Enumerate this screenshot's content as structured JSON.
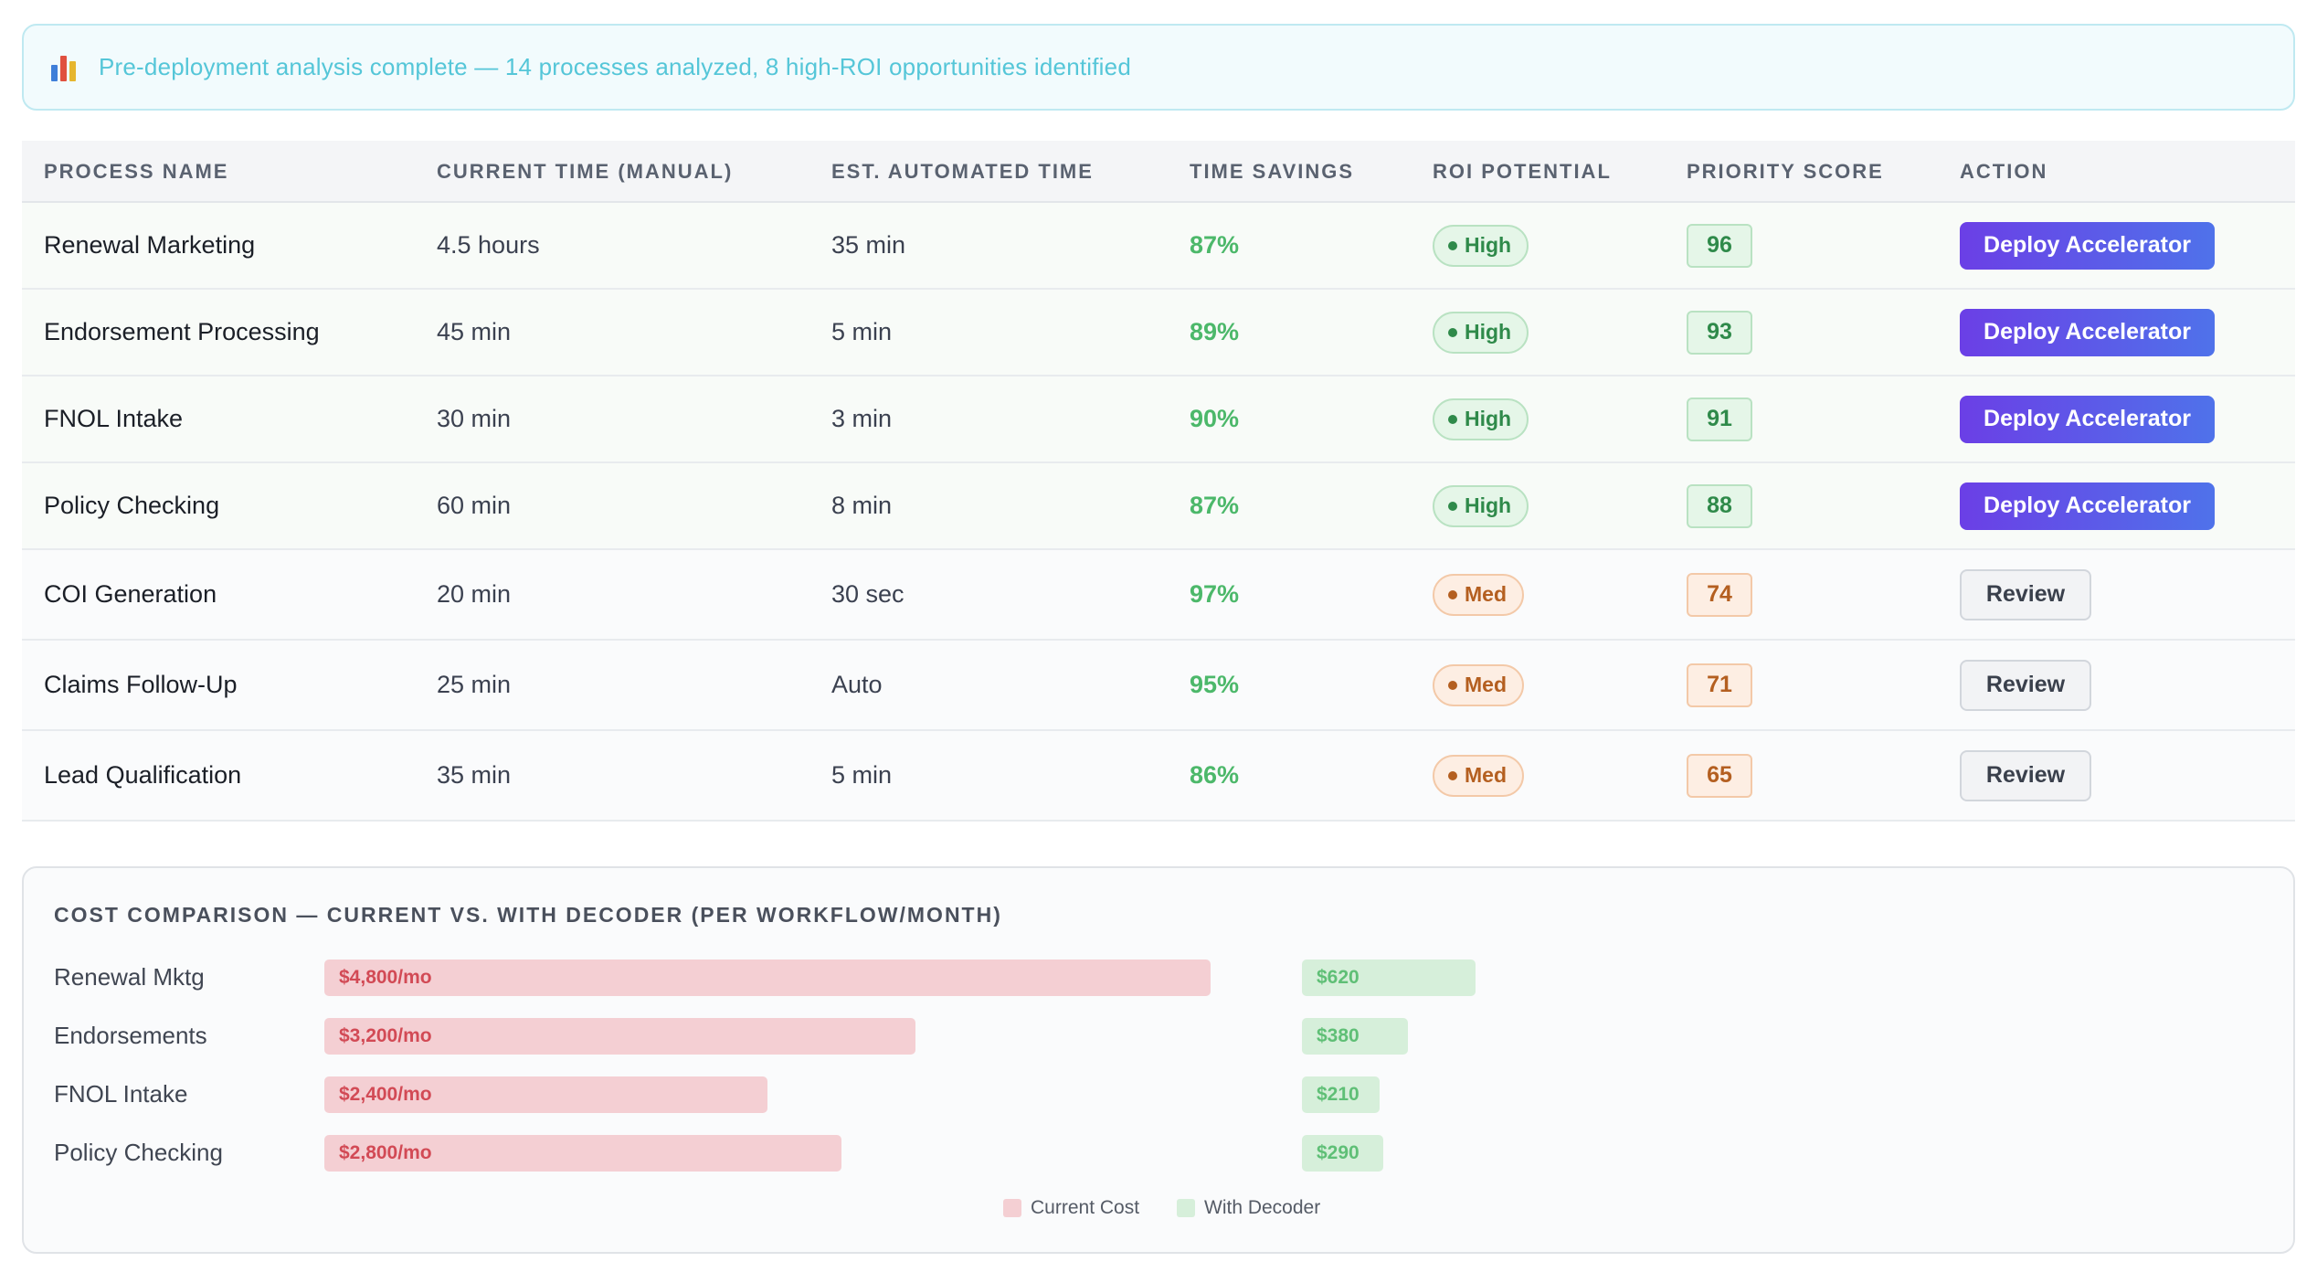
{
  "banner": {
    "icon": "bar-chart-icon",
    "message": "Pre-deployment analysis complete — 14 processes analyzed, 8 high-ROI opportunities identified"
  },
  "table": {
    "headers": [
      "PROCESS NAME",
      "CURRENT TIME (MANUAL)",
      "EST. AUTOMATED TIME",
      "TIME SAVINGS",
      "ROI POTENTIAL",
      "PRIORITY SCORE",
      "ACTION"
    ],
    "rows": [
      {
        "name": "Renewal Marketing",
        "current": "4.5 hours",
        "automated": "35 min",
        "savings": "87%",
        "roi": "High",
        "score": "96",
        "action": "Deploy Accelerator"
      },
      {
        "name": "Endorsement Processing",
        "current": "45 min",
        "automated": "5 min",
        "savings": "89%",
        "roi": "High",
        "score": "93",
        "action": "Deploy Accelerator"
      },
      {
        "name": "FNOL Intake",
        "current": "30 min",
        "automated": "3 min",
        "savings": "90%",
        "roi": "High",
        "score": "91",
        "action": "Deploy Accelerator"
      },
      {
        "name": "Policy Checking",
        "current": "60 min",
        "automated": "8 min",
        "savings": "87%",
        "roi": "High",
        "score": "88",
        "action": "Deploy Accelerator"
      },
      {
        "name": "COI Generation",
        "current": "20 min",
        "automated": "30 sec",
        "savings": "97%",
        "roi": "Med",
        "score": "74",
        "action": "Review"
      },
      {
        "name": "Claims Follow-Up",
        "current": "25 min",
        "automated": "Auto",
        "savings": "95%",
        "roi": "Med",
        "score": "71",
        "action": "Review"
      },
      {
        "name": "Lead Qualification",
        "current": "35 min",
        "automated": "5 min",
        "savings": "86%",
        "roi": "Med",
        "score": "65",
        "action": "Review"
      }
    ]
  },
  "cost_comparison": {
    "title": "COST COMPARISON — CURRENT VS. WITH DECODER (PER WORKFLOW/MONTH)",
    "rows": [
      {
        "label": "Renewal Mktg",
        "current_label": "$4,800/mo",
        "current_value": 4800,
        "decoder_label": "$620",
        "decoder_value": 620
      },
      {
        "label": "Endorsements",
        "current_label": "$3,200/mo",
        "current_value": 3200,
        "decoder_label": "$380",
        "decoder_value": 380
      },
      {
        "label": "FNOL Intake",
        "current_label": "$2,400/mo",
        "current_value": 2400,
        "decoder_label": "$210",
        "decoder_value": 210
      },
      {
        "label": "Policy Checking",
        "current_label": "$2,800/mo",
        "current_value": 2800,
        "decoder_label": "$290",
        "decoder_value": 290
      }
    ],
    "legend": {
      "current": "Current Cost",
      "decoder": "With Decoder"
    },
    "colors": {
      "current": "#f4cfd3",
      "decoder": "#d6efda"
    }
  }
}
